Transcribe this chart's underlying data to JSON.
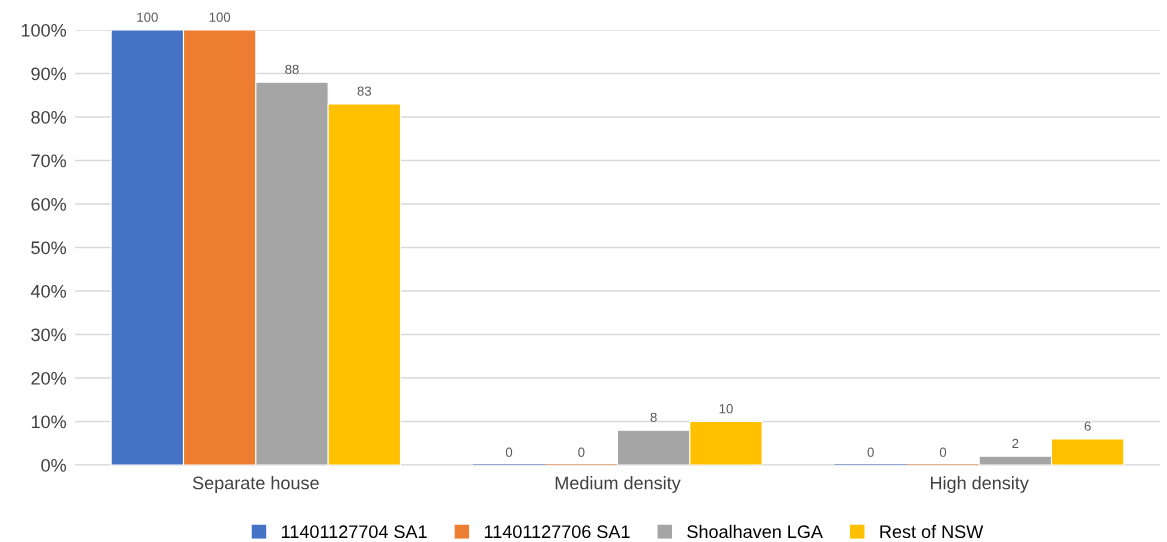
{
  "chart_data": {
    "type": "bar",
    "categories": [
      "Separate house",
      "Medium density",
      "High density"
    ],
    "series": [
      {
        "name": "11401127704 SA1",
        "color": "#4472c4",
        "values": [
          100,
          0,
          0
        ]
      },
      {
        "name": "11401127706 SA1",
        "color": "#ed7d31",
        "values": [
          100,
          0,
          0
        ]
      },
      {
        "name": "Shoalhaven LGA",
        "color": "#a5a5a5",
        "values": [
          88,
          8,
          2
        ]
      },
      {
        "name": "Rest of NSW",
        "color": "#ffc000",
        "values": [
          83,
          10,
          6
        ]
      }
    ],
    "ylim": [
      0,
      100
    ],
    "yticks": [
      {
        "value": 0,
        "label": "0%"
      },
      {
        "value": 10,
        "label": "10%"
      },
      {
        "value": 20,
        "label": "20%"
      },
      {
        "value": 30,
        "label": "30%"
      },
      {
        "value": 40,
        "label": "40%"
      },
      {
        "value": 50,
        "label": "50%"
      },
      {
        "value": 60,
        "label": "60%"
      },
      {
        "value": 70,
        "label": "70%"
      },
      {
        "value": 80,
        "label": "80%"
      },
      {
        "value": 90,
        "label": "90%"
      },
      {
        "value": 100,
        "label": "100%"
      }
    ],
    "grid": "y",
    "legend": "bottom",
    "data_labels": true
  }
}
